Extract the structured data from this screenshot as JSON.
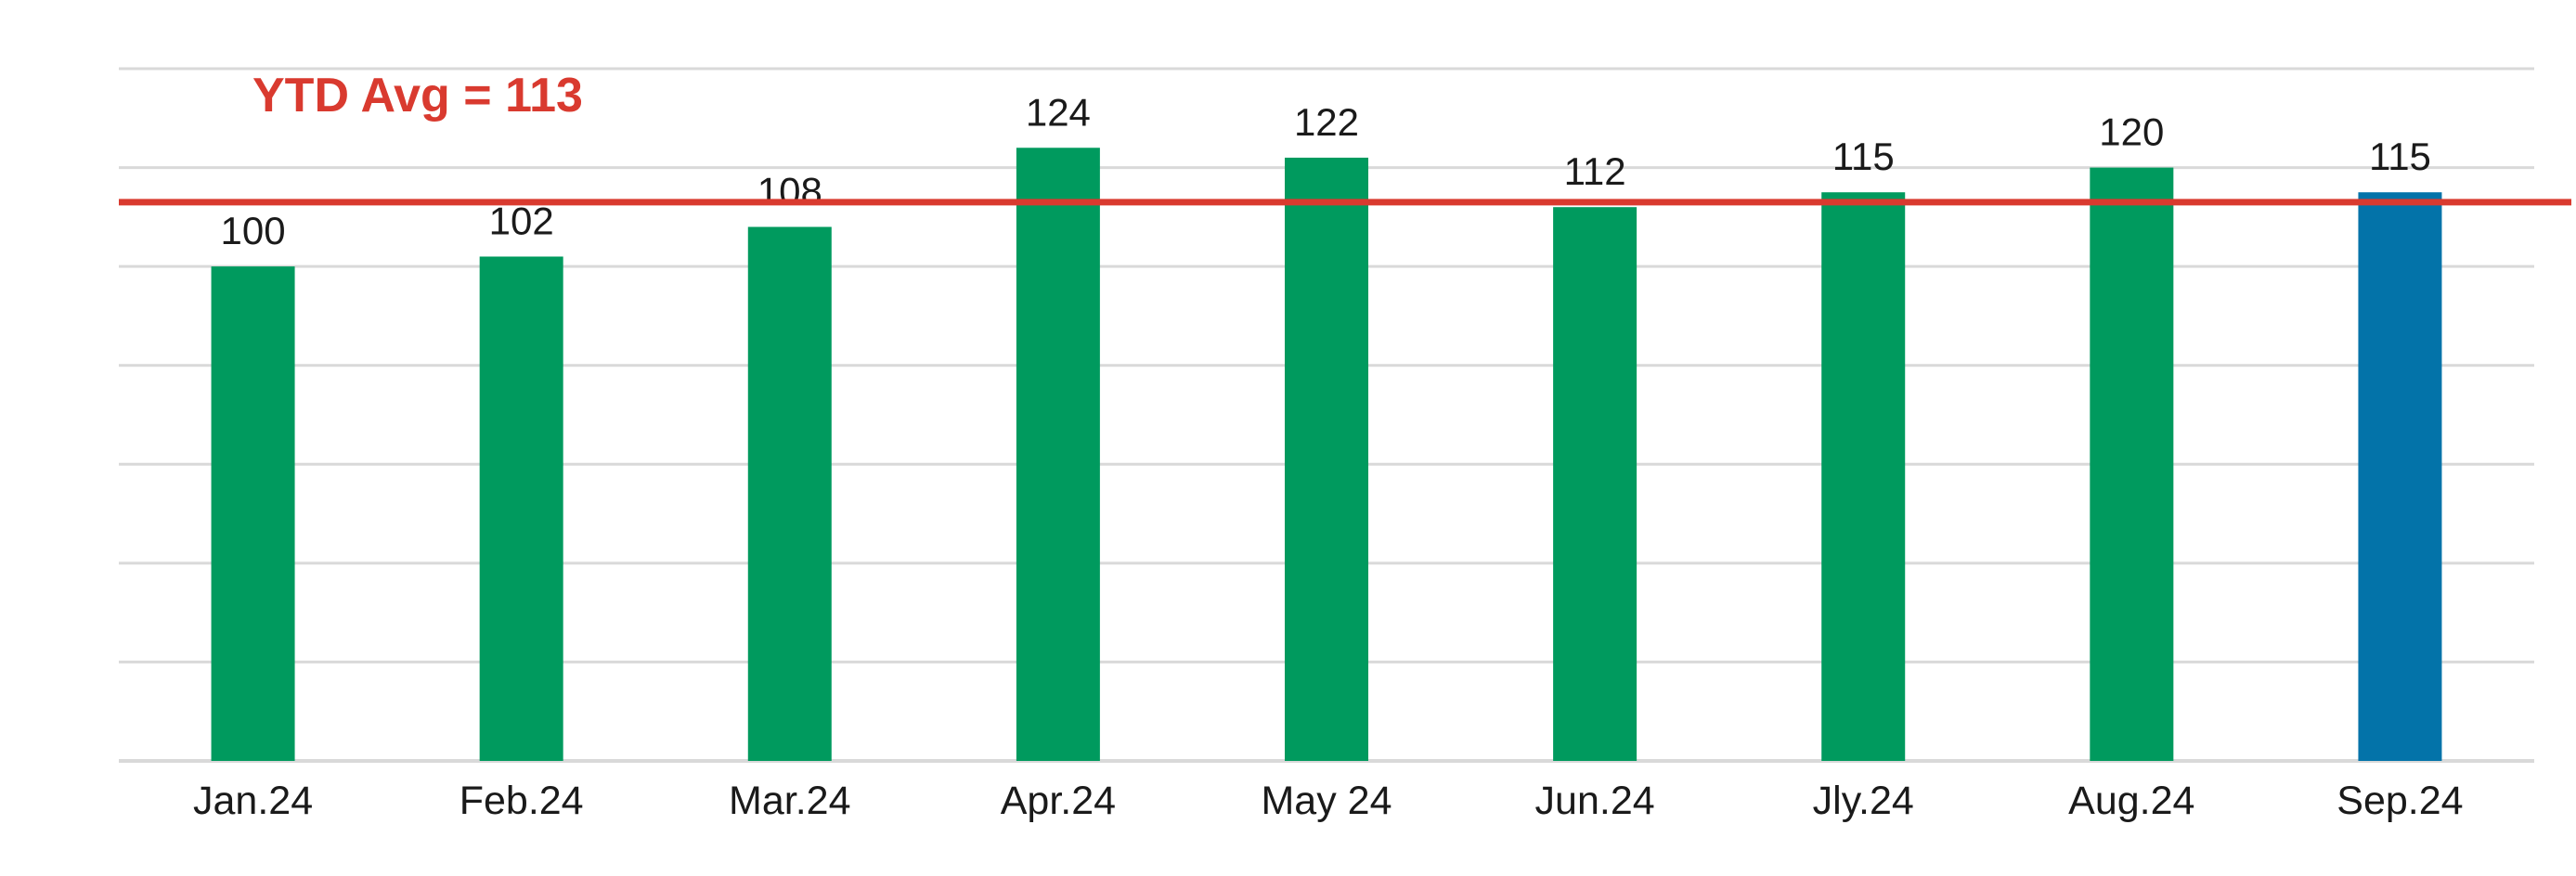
{
  "chart_data": {
    "type": "bar",
    "categories": [
      "Jan.24",
      "Feb.24",
      "Mar.24",
      "Apr.24",
      "May 24",
      "Jun.24",
      "Jly.24",
      "Aug.24",
      "Sep.24"
    ],
    "values": [
      100,
      102,
      108,
      124,
      122,
      112,
      115,
      120,
      115
    ],
    "ylim": [
      0,
      140
    ],
    "grid": true,
    "average": {
      "label": "YTD Avg = 113",
      "value": 113
    },
    "colors": {
      "bar": "#009a5e",
      "highlight_bar": "#0373a9",
      "average_line": "#d93a2f",
      "grid": "#d9d9d9"
    },
    "highlight_category": "Sep.24"
  }
}
